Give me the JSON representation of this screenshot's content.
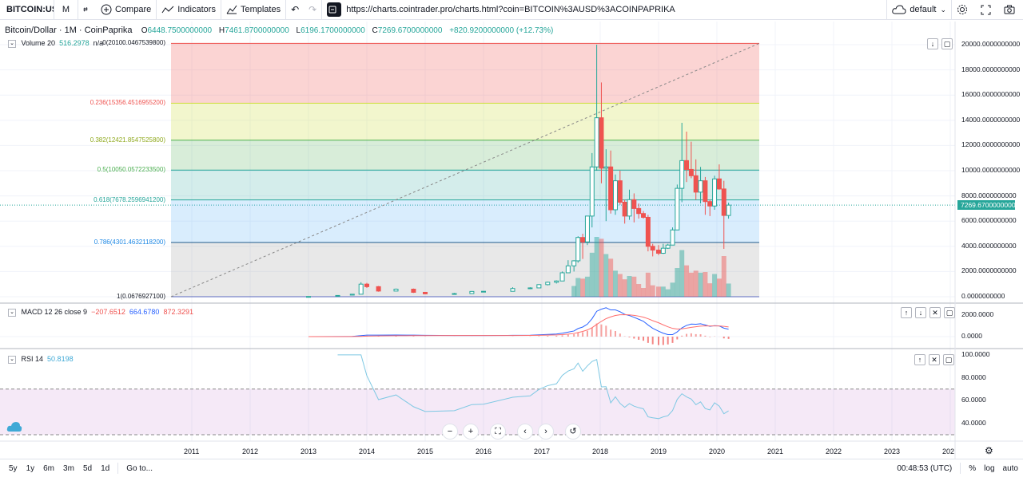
{
  "toolbar": {
    "symbol": "BITCOIN:USD",
    "interval": "M",
    "compare": "Compare",
    "indicators": "Indicators",
    "templates": "Templates",
    "url": "https://charts.cointrader.pro/charts.html?coin=BITCOIN%3AUSD%3ACOINPAPRIKA",
    "layout": "default"
  },
  "legend": {
    "title": "Bitcoin/Dollar · 1M · CoinPaprika",
    "o_label": "O",
    "o": "6448.7500000000",
    "h_label": "H",
    "h": "7461.8700000000",
    "l_label": "L",
    "l": "6196.1700000000",
    "c_label": "C",
    "c": "7269.6700000000",
    "change": "+820.9200000000 (+12.73%)"
  },
  "volume_legend": {
    "name": "Volume 20",
    "value": "516.2978",
    "extra": "n/a"
  },
  "macd_legend": {
    "name": "MACD 12 26 close 9",
    "hist": "−207.6512",
    "macd": "664.6780",
    "signal": "872.3291"
  },
  "rsi_legend": {
    "name": "RSI 14",
    "value": "50.8198"
  },
  "price_axis": [
    "20000.0000000000",
    "18000.0000000000",
    "16000.0000000000",
    "14000.0000000000",
    "12000.0000000000",
    "10000.0000000000",
    "8000.0000000000",
    "6000.0000000000",
    "4000.0000000000",
    "2000.0000000000",
    "0.0000000000"
  ],
  "macd_axis": [
    "2000.0000",
    "0.0000"
  ],
  "rsi_axis": [
    "100.0000",
    "80.0000",
    "60.0000",
    "40.0000"
  ],
  "last_price": "7269.6700000000",
  "fib_labels": [
    "0(20100.0467539800)",
    "0.236(15356.4516955200)",
    "0.382(12421.8547525800)",
    "0.5(10050.0572233500)",
    "0.618(7678.2596941200)",
    "0.786(4301.4632118200)",
    "1(0.0676927100)"
  ],
  "time_axis": [
    "2011",
    "2012",
    "2013",
    "2014",
    "2015",
    "2016",
    "2017",
    "2018",
    "2019",
    "2020",
    "2021",
    "2022",
    "2023",
    "202"
  ],
  "bottom": {
    "ranges": [
      "5y",
      "1y",
      "6m",
      "3m",
      "5d",
      "1d"
    ],
    "goto": "Go to...",
    "clock": "00:48:53 (UTC)",
    "pct": "%",
    "log": "log",
    "auto": "auto"
  },
  "colors": {
    "up": "#26a69a",
    "down": "#ef5350",
    "macd": "#2962ff",
    "signal": "#ff6d6d",
    "rsi": "#7ec8e3"
  },
  "chart_data": {
    "type": "candlestick",
    "title": "Bitcoin/Dollar · 1M · CoinPaprika",
    "ylim": [
      0,
      20000
    ],
    "fib_levels": [
      {
        "ratio": "0",
        "price": 20100.04675398
      },
      {
        "ratio": "0.236",
        "price": 15356.45169552
      },
      {
        "ratio": "0.382",
        "price": 12421.85475258
      },
      {
        "ratio": "0.5",
        "price": 10050.05722335
      },
      {
        "ratio": "0.618",
        "price": 7678.25969412
      },
      {
        "ratio": "0.786",
        "price": 4301.46321182
      },
      {
        "ratio": "1",
        "price": 0.06769271
      }
    ],
    "candles_monthly_approx": [
      [
        2013.0,
        13,
        20,
        13,
        20
      ],
      [
        2013.5,
        90,
        120,
        70,
        100
      ],
      [
        2013.75,
        130,
        200,
        120,
        200
      ],
      [
        2013.9,
        200,
        1150,
        200,
        1000
      ],
      [
        2014.0,
        1000,
        1100,
        700,
        800
      ],
      [
        2014.2,
        800,
        850,
        400,
        450
      ],
      [
        2014.5,
        450,
        650,
        450,
        600
      ],
      [
        2014.8,
        600,
        650,
        300,
        350
      ],
      [
        2015.0,
        350,
        350,
        200,
        230
      ],
      [
        2015.5,
        230,
        300,
        200,
        250
      ],
      [
        2015.8,
        250,
        450,
        230,
        420
      ],
      [
        2016.0,
        420,
        450,
        360,
        430
      ],
      [
        2016.5,
        430,
        750,
        430,
        650
      ],
      [
        2016.8,
        650,
        750,
        600,
        700
      ],
      [
        2016.95,
        700,
        1000,
        700,
        960
      ],
      [
        2017.1,
        960,
        1200,
        900,
        1150
      ],
      [
        2017.25,
        1150,
        1300,
        1050,
        1250
      ],
      [
        2017.35,
        1250,
        2000,
        1250,
        1900
      ],
      [
        2017.45,
        1900,
        2900,
        1900,
        2450
      ],
      [
        2017.55,
        2450,
        2900,
        2000,
        2850
      ],
      [
        2017.62,
        2850,
        4800,
        2700,
        4700
      ],
      [
        2017.7,
        4700,
        5000,
        3000,
        4350
      ],
      [
        2017.78,
        4350,
        6400,
        4100,
        6400
      ],
      [
        2017.86,
        6400,
        11400,
        5500,
        10300
      ],
      [
        2017.94,
        10300,
        20000,
        10000,
        14200
      ],
      [
        2018.02,
        14200,
        17000,
        9000,
        10200
      ],
      [
        2018.1,
        10200,
        11700,
        6000,
        10300
      ],
      [
        2018.18,
        10300,
        11600,
        6600,
        6900
      ],
      [
        2018.26,
        6900,
        9700,
        6500,
        9200
      ],
      [
        2018.34,
        9200,
        10000,
        7300,
        7500
      ],
      [
        2018.42,
        7500,
        7700,
        5800,
        6400
      ],
      [
        2018.5,
        6400,
        8500,
        6100,
        7700
      ],
      [
        2018.58,
        7700,
        8200,
        5900,
        7000
      ],
      [
        2018.66,
        7000,
        7400,
        6200,
        6600
      ],
      [
        2018.74,
        6600,
        6800,
        6200,
        6300
      ],
      [
        2018.82,
        6300,
        6500,
        3600,
        4000
      ],
      [
        2018.9,
        4000,
        4200,
        3200,
        3700
      ],
      [
        2019.0,
        3700,
        4100,
        3300,
        3450
      ],
      [
        2019.08,
        3450,
        4200,
        3400,
        3850
      ],
      [
        2019.16,
        3850,
        4200,
        3800,
        4100
      ],
      [
        2019.24,
        4100,
        5500,
        4100,
        5300
      ],
      [
        2019.32,
        5300,
        8900,
        5300,
        8600
      ],
      [
        2019.4,
        8600,
        13800,
        7500,
        10800
      ],
      [
        2019.48,
        10800,
        13100,
        9100,
        10100
      ],
      [
        2019.56,
        10100,
        12300,
        9400,
        9600
      ],
      [
        2019.64,
        9600,
        10900,
        7700,
        8300
      ],
      [
        2019.72,
        8300,
        10300,
        7400,
        9200
      ],
      [
        2019.8,
        9200,
        9500,
        6500,
        7550
      ],
      [
        2019.88,
        7550,
        7700,
        6400,
        7200
      ],
      [
        2019.96,
        7200,
        9600,
        6900,
        9350
      ],
      [
        2020.04,
        9350,
        10500,
        8500,
        8550
      ],
      [
        2020.12,
        8550,
        9200,
        3800,
        6450
      ],
      [
        2020.2,
        6448.75,
        7461.87,
        6196.17,
        7269.67
      ]
    ]
  }
}
